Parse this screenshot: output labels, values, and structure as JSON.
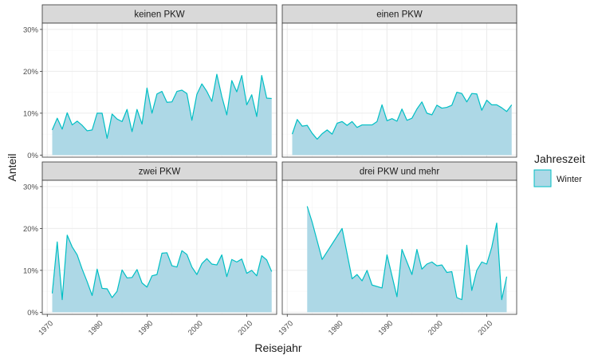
{
  "colors": {
    "area_fill": "#add8e6",
    "line": "#00bfc4",
    "panel_bg": "#ffffff",
    "strip_bg": "#d9d9d9",
    "grid_major": "#ebebeb",
    "grid_minor": "#f5f5f5",
    "border": "#333333",
    "text": "#1a1a1a",
    "tick_text": "#4d4d4d"
  },
  "chart_data": {
    "type": "area",
    "xlabel": "Reisejahr",
    "ylabel": "Anteil",
    "xlim": [
      1969,
      2016
    ],
    "ylim": [
      -0.005,
      0.315
    ],
    "x_ticks": [
      1970,
      1980,
      1990,
      2000,
      2010
    ],
    "x_tick_labels": [
      "1970",
      "1980",
      "1990",
      "2000",
      "2010"
    ],
    "y_ticks": [
      0,
      0.1,
      0.2,
      0.3
    ],
    "y_tick_labels": [
      "0%",
      "10%",
      "20%",
      "30%"
    ],
    "grid": true,
    "legend": {
      "title": "Jahreszeit",
      "placement": "right",
      "entries": [
        "Winter"
      ]
    },
    "panels": [
      {
        "title": "keinen PKW",
        "x": [
          1971,
          1972,
          1973,
          1974,
          1975,
          1976,
          1977,
          1978,
          1979,
          1980,
          1981,
          1982,
          1983,
          1984,
          1985,
          1986,
          1987,
          1988,
          1989,
          1990,
          1991,
          1992,
          1993,
          1994,
          1995,
          1996,
          1997,
          1998,
          1999,
          2000,
          2001,
          2002,
          2003,
          2004,
          2005,
          2006,
          2007,
          2008,
          2009,
          2010,
          2011,
          2012,
          2013,
          2014,
          2015
        ],
        "y": [
          0.06,
          0.088,
          0.062,
          0.101,
          0.072,
          0.081,
          0.071,
          0.058,
          0.06,
          0.1,
          0.1,
          0.04,
          0.098,
          0.086,
          0.08,
          0.109,
          0.056,
          0.109,
          0.074,
          0.16,
          0.1,
          0.146,
          0.152,
          0.126,
          0.127,
          0.152,
          0.155,
          0.147,
          0.083,
          0.145,
          0.17,
          0.152,
          0.128,
          0.193,
          0.14,
          0.096,
          0.178,
          0.151,
          0.19,
          0.12,
          0.144,
          0.092,
          0.19,
          0.136,
          0.135
        ]
      },
      {
        "title": "einen PKW",
        "x": [
          1971,
          1972,
          1973,
          1974,
          1975,
          1976,
          1977,
          1978,
          1979,
          1980,
          1981,
          1982,
          1983,
          1984,
          1985,
          1986,
          1987,
          1988,
          1989,
          1990,
          1991,
          1992,
          1993,
          1994,
          1995,
          1996,
          1997,
          1998,
          1999,
          2000,
          2001,
          2002,
          2003,
          2004,
          2005,
          2006,
          2007,
          2008,
          2009,
          2010,
          2011,
          2012,
          2013,
          2014,
          2015
        ],
        "y": [
          0.05,
          0.085,
          0.069,
          0.071,
          0.052,
          0.038,
          0.051,
          0.06,
          0.05,
          0.076,
          0.08,
          0.071,
          0.08,
          0.066,
          0.072,
          0.072,
          0.072,
          0.08,
          0.12,
          0.082,
          0.087,
          0.081,
          0.11,
          0.083,
          0.088,
          0.11,
          0.127,
          0.1,
          0.096,
          0.119,
          0.112,
          0.114,
          0.119,
          0.15,
          0.147,
          0.127,
          0.147,
          0.146,
          0.107,
          0.131,
          0.12,
          0.12,
          0.113,
          0.104,
          0.12
        ]
      },
      {
        "title": "zwei PKW",
        "x": [
          1971,
          1972,
          1973,
          1974,
          1975,
          1976,
          1977,
          1978,
          1979,
          1980,
          1981,
          1982,
          1983,
          1984,
          1985,
          1986,
          1987,
          1988,
          1989,
          1990,
          1991,
          1992,
          1993,
          1994,
          1995,
          1996,
          1997,
          1998,
          1999,
          2000,
          2001,
          2002,
          2003,
          2004,
          2005,
          2006,
          2007,
          2008,
          2009,
          2010,
          2011,
          2012,
          2013,
          2014,
          2015
        ],
        "y": [
          0.045,
          0.168,
          0.03,
          0.184,
          0.156,
          0.137,
          0.103,
          0.073,
          0.04,
          0.103,
          0.057,
          0.056,
          0.035,
          0.05,
          0.101,
          0.082,
          0.083,
          0.102,
          0.07,
          0.06,
          0.087,
          0.09,
          0.141,
          0.142,
          0.111,
          0.108,
          0.147,
          0.138,
          0.108,
          0.09,
          0.116,
          0.128,
          0.115,
          0.113,
          0.137,
          0.085,
          0.126,
          0.12,
          0.127,
          0.093,
          0.1,
          0.087,
          0.135,
          0.125,
          0.097
        ]
      },
      {
        "title": "drei PKW und mehr",
        "x": [
          1974,
          1975,
          1977,
          1981,
          1983,
          1984,
          1985,
          1986,
          1987,
          1989,
          1990,
          1991,
          1992,
          1993,
          1994,
          1995,
          1996,
          1997,
          1998,
          1999,
          2000,
          2001,
          2002,
          2003,
          2004,
          2005,
          2006,
          2007,
          2008,
          2009,
          2010,
          2011,
          2012,
          2013,
          2014
        ],
        "y": [
          0.253,
          0.215,
          0.126,
          0.2,
          0.08,
          0.09,
          0.075,
          0.1,
          0.065,
          0.058,
          0.137,
          0.087,
          0.037,
          0.15,
          0.12,
          0.09,
          0.15,
          0.103,
          0.115,
          0.12,
          0.111,
          0.113,
          0.095,
          0.097,
          0.035,
          0.03,
          0.16,
          0.052,
          0.1,
          0.12,
          0.115,
          0.155,
          0.213,
          0.03,
          0.085
        ]
      }
    ]
  }
}
